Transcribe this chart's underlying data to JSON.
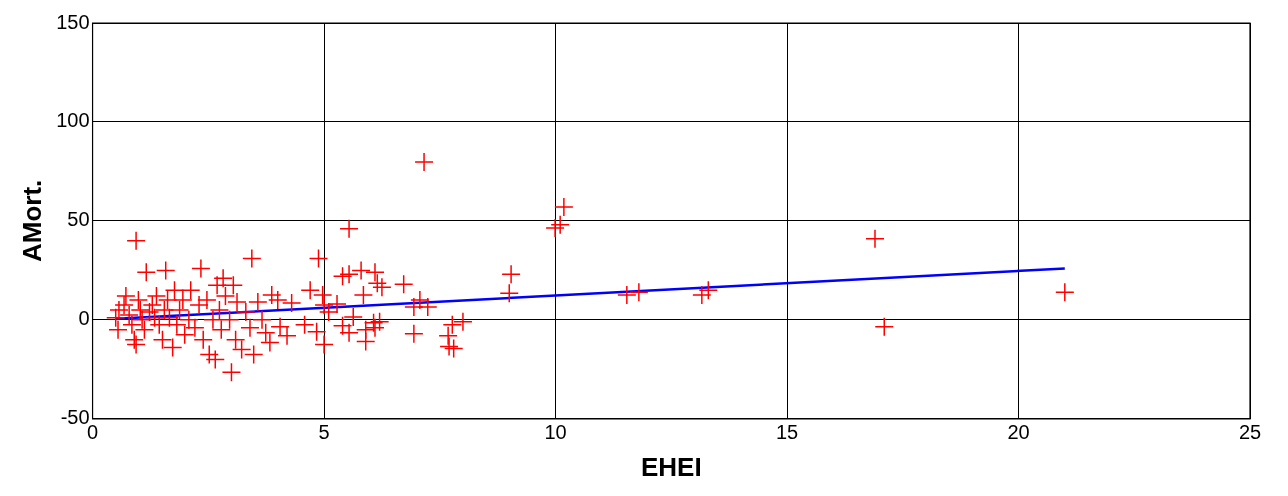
{
  "chart_data": {
    "type": "scatter",
    "xlabel": "EHEI",
    "ylabel": "AMort.",
    "xlim": [
      0,
      25
    ],
    "xticks": [
      0,
      5,
      10,
      15,
      20,
      25
    ],
    "ylim": [
      -50,
      150
    ],
    "yticks": [
      -50,
      0,
      50,
      100,
      150
    ],
    "grid": true,
    "marker": "cross",
    "series": [
      {
        "color": "#ff0000",
        "x": [
          7.16,
          10.18,
          9.99,
          10.1,
          16.9,
          21.0,
          17.1,
          0.94,
          5.54,
          9.04,
          9.0,
          3.44,
          4.88,
          2.34,
          1.58,
          1.16,
          2.69,
          6.1,
          5.8,
          5.4,
          5.54,
          6.15,
          6.25,
          5.85,
          5.28,
          4.97,
          4.7,
          4.3,
          4.0,
          3.87,
          5.0,
          5.1,
          4.58,
          4.84,
          5.0,
          5.4,
          5.54,
          5.63,
          5.9,
          5.9,
          6.1,
          6.07,
          6.2,
          4.2,
          4.05,
          6.94,
          7.24,
          6.94,
          7.77,
          7.68,
          7.7,
          7.8,
          8.0,
          6.72,
          7.07,
          11.54,
          11.8,
          13.16,
          13.3,
          0.57,
          0.5,
          0.55,
          0.68,
          0.72,
          0.79,
          0.85,
          0.9,
          0.94,
          0.99,
          1.03,
          1.07,
          1.12,
          1.23,
          1.29,
          1.34,
          1.38,
          1.44,
          1.51,
          1.55,
          1.62,
          1.66,
          1.73,
          1.77,
          1.82,
          1.88,
          1.95,
          1.99,
          2.08,
          2.12,
          2.21,
          2.3,
          2.39,
          2.47,
          2.52,
          2.6,
          2.65,
          2.74,
          2.78,
          2.87,
          2.96,
          3.0,
          3.09,
          3.12,
          3.22,
          3.31,
          3.4,
          3.48,
          3.57,
          3.66,
          3.74,
          3.83,
          3.04,
          2.82
        ],
        "values": [
          79.8,
          57,
          46.4,
          48,
          41,
          14,
          -3.5,
          40,
          46,
          23,
          13.5,
          31,
          31,
          26,
          25,
          24,
          17.5,
          24,
          25,
          22,
          23,
          18.5,
          16.5,
          12.5,
          8,
          12.5,
          15,
          8.5,
          10,
          12.5,
          7.5,
          4,
          -2.5,
          -6,
          -12.5,
          -3,
          -6.5,
          1.5,
          -5,
          -11,
          -4,
          -1.5,
          -1,
          -8,
          -3.5,
          6.5,
          6.5,
          -7,
          -2.5,
          -8,
          -13.5,
          -14.5,
          -1,
          18,
          10,
          12.5,
          14,
          12.5,
          15,
          5,
          1,
          -5,
          7.5,
          12,
          2.5,
          -2.5,
          -10,
          -12.5,
          10,
          5,
          0,
          -5,
          4,
          7.5,
          1,
          12,
          -2.5,
          -10,
          5,
          10,
          1,
          -14,
          15,
          -2.5,
          5,
          10,
          -7.5,
          0,
          15,
          -4,
          7.5,
          -10,
          10,
          -17.5,
          0,
          -20,
          5,
          -5,
          12,
          0,
          -26.5,
          -10,
          9,
          -15,
          4,
          -4,
          -17.5,
          9,
          0,
          -6.5,
          -11.5,
          17.5,
          21
        ]
      },
      {
        "type": "line",
        "color": "#0000ff",
        "marker": "none",
        "x": [
          0.5,
          21
        ],
        "values": [
          0.5,
          26
        ]
      }
    ]
  }
}
